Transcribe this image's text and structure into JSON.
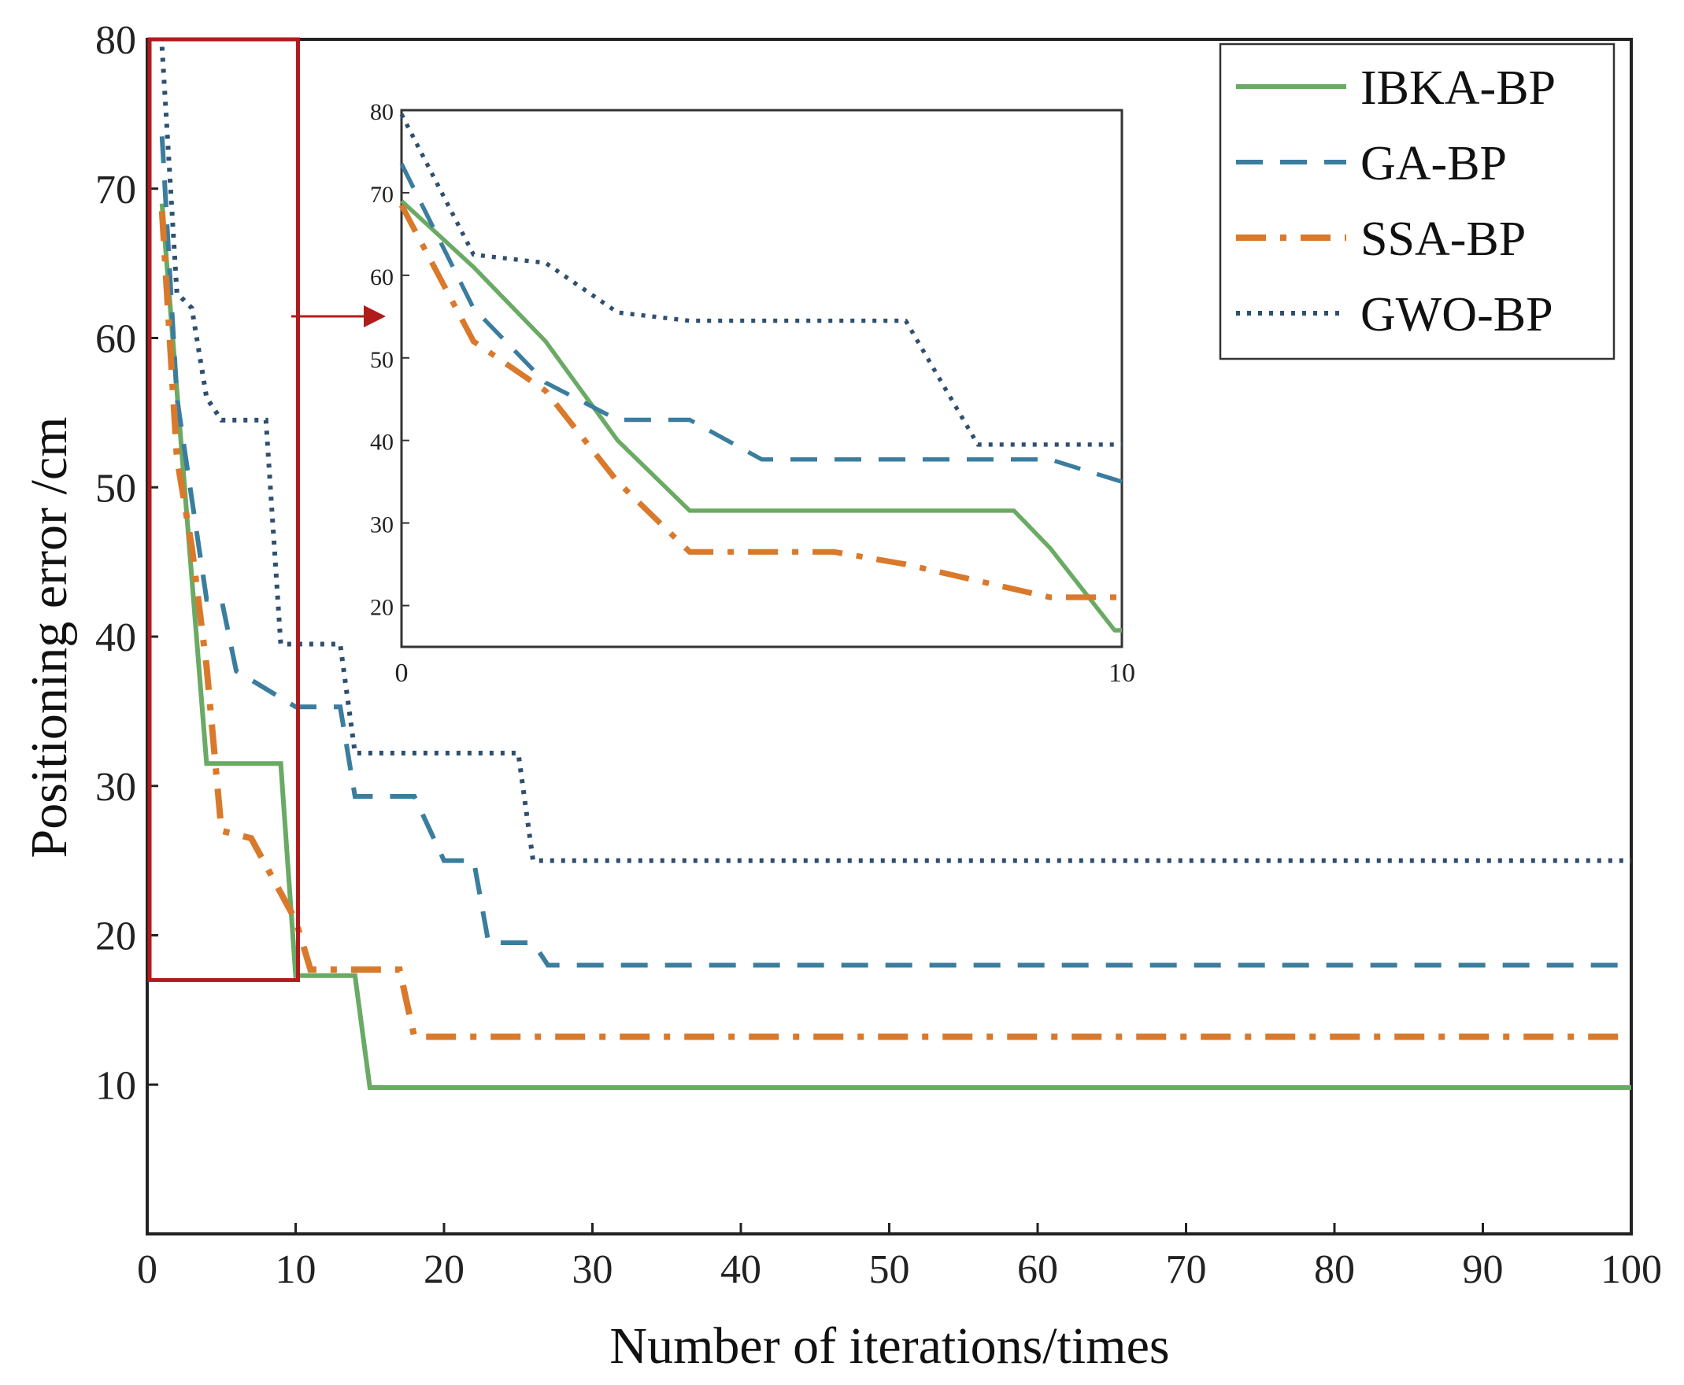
{
  "chart_data": {
    "type": "line",
    "xlabel": "Number of iterations/times",
    "ylabel": "Positioning error /cm",
    "xlim": [
      0,
      100
    ],
    "ylim": [
      0,
      80
    ],
    "xticks": [
      0,
      10,
      20,
      30,
      40,
      50,
      60,
      70,
      80,
      90,
      100
    ],
    "yticks": [
      10,
      20,
      30,
      40,
      50,
      60,
      70,
      80
    ],
    "legend_position": "top-right",
    "colors": {
      "IBKA-BP": "#6aaa64",
      "GA-BP": "#3b7d9e",
      "SSA-BP": "#d9792b",
      "GWO-BP": "#2f4f6f",
      "highlight": "#b01c1c"
    },
    "series": [
      {
        "name": "IBKA-BP",
        "style": "solid",
        "x": [
          1,
          4,
          9,
          10,
          14,
          15,
          100
        ],
        "y": [
          69,
          31.5,
          31.5,
          17.3,
          17.3,
          9.8,
          9.8
        ]
      },
      {
        "name": "GA-BP",
        "style": "dashed",
        "x": [
          1,
          2,
          4,
          5,
          6,
          10,
          13,
          14,
          18,
          20,
          22,
          23,
          26,
          27,
          100
        ],
        "y": [
          73.5,
          56,
          42.5,
          42.5,
          37.7,
          35.3,
          35.3,
          29.3,
          29.3,
          25,
          25,
          19.5,
          19.5,
          18,
          18
        ]
      },
      {
        "name": "SSA-BP",
        "style": "dashdot",
        "x": [
          1,
          2,
          3,
          4,
          5,
          7,
          10,
          11,
          12,
          17,
          18,
          100
        ],
        "y": [
          68.5,
          52,
          46,
          38,
          27,
          26.5,
          21,
          17.7,
          17.7,
          17.7,
          13.2,
          13.2
        ]
      },
      {
        "name": "GWO-BP",
        "style": "dotted",
        "x": [
          1,
          2,
          3,
          4,
          5,
          8,
          9,
          10,
          13,
          14,
          25,
          26,
          100
        ],
        "y": [
          79.5,
          63,
          62,
          56,
          54.5,
          54.5,
          39.5,
          39.5,
          39.5,
          32.2,
          32.2,
          25,
          25
        ]
      }
    ],
    "inset": {
      "xlim": [
        0,
        10
      ],
      "ylim": [
        15,
        80
      ],
      "xticks": [
        0,
        10
      ],
      "yticks": [
        20,
        30,
        40,
        50,
        60,
        70,
        80
      ],
      "series": [
        {
          "name": "IBKA-BP",
          "x": [
            0,
            1,
            2,
            3,
            4,
            5,
            6,
            7,
            8,
            8.5,
            9,
            9.9,
            10
          ],
          "y": [
            69,
            61,
            52,
            40,
            31.5,
            31.5,
            31.5,
            31.5,
            31.5,
            31.5,
            27,
            17,
            17
          ]
        },
        {
          "name": "GA-BP",
          "x": [
            0,
            1,
            2,
            3,
            4,
            5,
            6,
            7,
            8,
            9,
            10
          ],
          "y": [
            73.5,
            56,
            47,
            42.5,
            42.5,
            37.7,
            37.7,
            37.7,
            37.7,
            37.7,
            35
          ]
        },
        {
          "name": "SSA-BP",
          "x": [
            0,
            1,
            2,
            3,
            4,
            5,
            6,
            7,
            8,
            9,
            10
          ],
          "y": [
            68.5,
            52,
            46,
            35,
            26.5,
            26.5,
            26.5,
            25,
            23,
            21,
            21
          ]
        },
        {
          "name": "GWO-BP",
          "x": [
            0,
            1,
            2,
            3,
            4,
            5,
            6,
            7,
            8,
            8.2,
            9,
            10
          ],
          "y": [
            79.5,
            62.5,
            61.5,
            55.5,
            54.5,
            54.5,
            54.5,
            54.5,
            39.5,
            39.5,
            39.5,
            39.5
          ]
        }
      ]
    },
    "highlight_region": {
      "xlim": [
        0,
        10
      ],
      "ylim": [
        17,
        80
      ]
    }
  }
}
